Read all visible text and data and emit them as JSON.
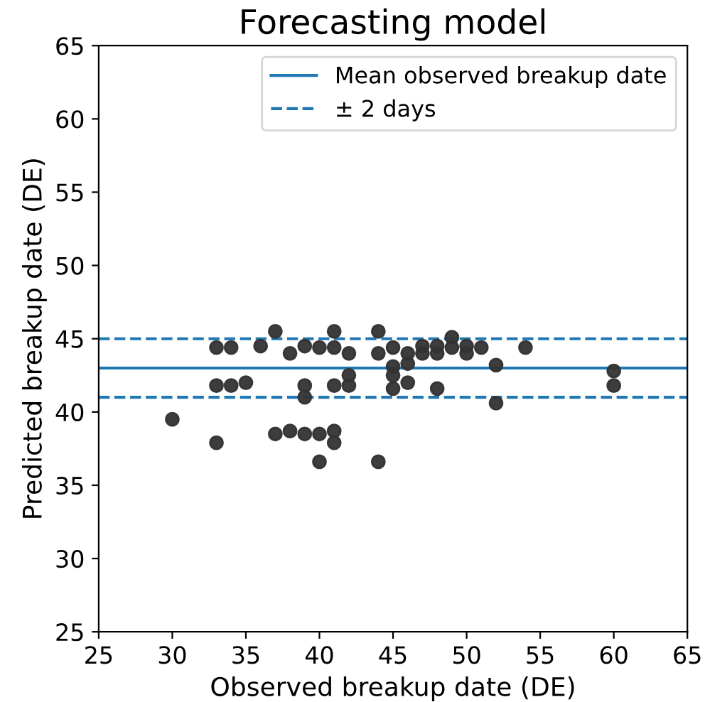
{
  "chart_data": {
    "type": "scatter",
    "title": "Forecasting model",
    "xlabel": "Observed breakup date (DE)",
    "ylabel": "Predicted breakup date (DE)",
    "x": [
      30,
      33,
      33,
      33,
      34,
      34,
      35,
      36,
      37,
      37,
      38,
      38,
      39,
      39,
      39,
      39,
      40,
      40,
      40,
      41,
      41,
      41,
      41,
      41,
      42,
      42,
      42,
      44,
      44,
      44,
      45,
      45,
      45,
      45,
      46,
      46,
      46,
      47,
      47,
      48,
      48,
      48,
      49,
      49,
      50,
      50,
      51,
      52,
      52,
      54,
      60,
      60
    ],
    "series": [
      {
        "color": "#333333",
        "values": [
          39.5,
          44.4,
          41.8,
          37.9,
          44.4,
          41.8,
          42.0,
          44.5,
          45.5,
          38.5,
          44.0,
          38.7,
          44.5,
          41.8,
          41.0,
          38.5,
          44.4,
          38.5,
          36.6,
          45.5,
          44.4,
          41.8,
          38.7,
          37.9,
          44.0,
          42.5,
          41.8,
          45.5,
          44.0,
          36.6,
          44.4,
          43.1,
          42.5,
          41.6,
          44.0,
          43.3,
          42.0,
          44.5,
          44.0,
          44.5,
          44.0,
          41.6,
          45.1,
          44.4,
          44.5,
          44.0,
          44.4,
          43.2,
          40.6,
          44.4,
          42.8,
          41.8
        ]
      }
    ],
    "xlim": [
      25,
      65
    ],
    "ylim": [
      25,
      65
    ],
    "xticks": [
      25,
      30,
      35,
      40,
      45,
      50,
      55,
      60,
      65
    ],
    "yticks": [
      25,
      30,
      35,
      40,
      45,
      50,
      55,
      60,
      65
    ],
    "ref_lines": [
      {
        "axis": "y",
        "value": 43,
        "label": "Mean observed breakup date",
        "color": "#1f77b4",
        "line_style": "solid"
      },
      {
        "axis": "y",
        "value": 45,
        "label": "± 2 days",
        "color": "#1f77b4",
        "line_style": "dashed"
      },
      {
        "axis": "y",
        "value": 41,
        "label": null,
        "color": "#1f77b4",
        "line_style": "dashed"
      }
    ],
    "marker": "circle",
    "legend": "top right",
    "grid": false
  }
}
